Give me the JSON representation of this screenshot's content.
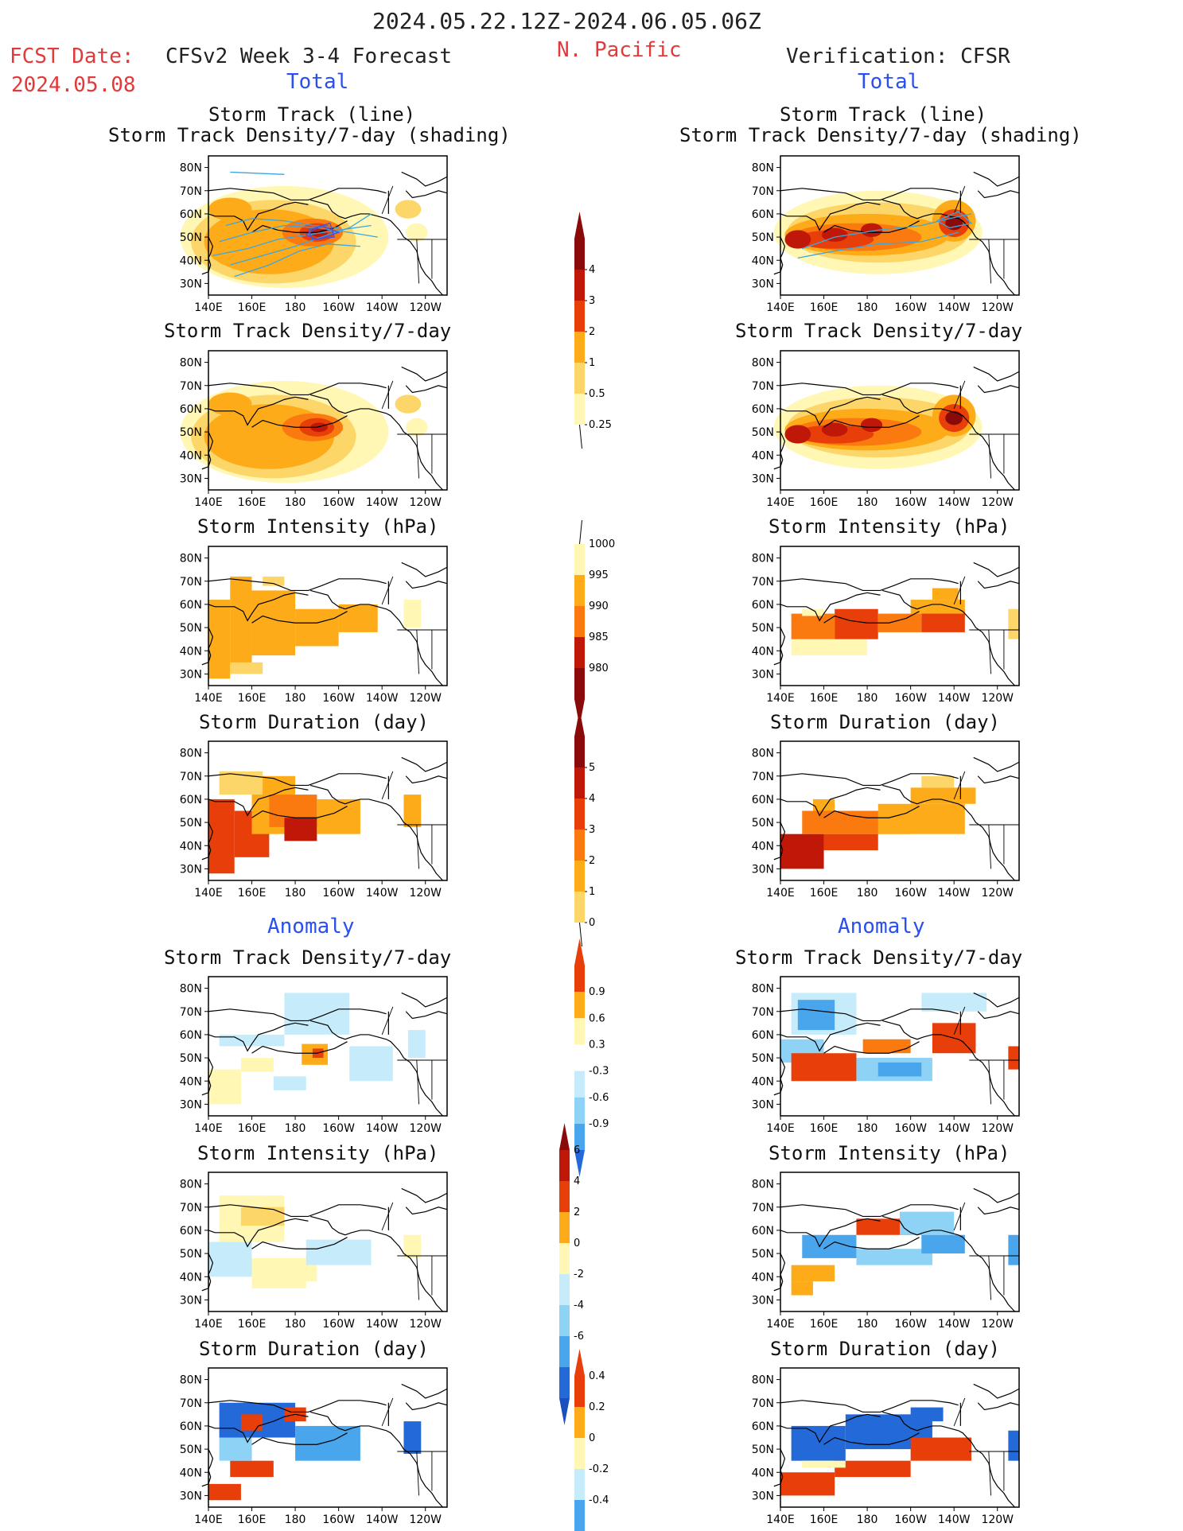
{
  "header": {
    "period": "2024.05.22.12Z-2024.06.05.06Z",
    "fcst_label": "FCST Date:",
    "fcst_date": "2024.05.08",
    "model_title": "CFSv2 Week 3-4 Forecast",
    "region": "N. Pacific",
    "verification": "Verification: CFSR"
  },
  "sections": {
    "total": "Total",
    "anomaly": "Anomaly"
  },
  "panel_titles": {
    "track_line": "Storm Track (line)",
    "track_shading": "Storm Track Density/7-day (shading)",
    "density": "Storm Track Density/7-day",
    "intensity": "Storm Intensity (hPa)",
    "duration": "Storm Duration (day)"
  },
  "axes": {
    "lat_labels": [
      "80N",
      "70N",
      "60N",
      "50N",
      "40N",
      "30N"
    ],
    "lon_labels": [
      "140E",
      "160E",
      "180",
      "160W",
      "140W",
      "120W"
    ]
  },
  "colorbars": {
    "density_total": [
      "4",
      "3",
      "2",
      "1",
      "0.5",
      "0.25"
    ],
    "intensity_total": [
      "1000",
      "995",
      "990",
      "985",
      "980"
    ],
    "duration_total": [
      "5",
      "4",
      "3",
      "2",
      "1",
      "0"
    ],
    "density_anom": [
      "0.9",
      "0.6",
      "0.3",
      "-0.3",
      "-0.6",
      "-0.9"
    ],
    "intensity_anom": [
      "6",
      "4",
      "2",
      "0",
      "-2",
      "-4",
      "-6"
    ],
    "duration_anom": [
      "0.4",
      "0.2",
      "0",
      "-0.2",
      "-0.4"
    ]
  },
  "colors": {
    "warm": [
      "#fff7b3",
      "#fdd66a",
      "#fdab18",
      "#fb7a10",
      "#e83e0a",
      "#c01808",
      "#8a0a0a"
    ],
    "cool": [
      "#c6ecfb",
      "#8ed3f6",
      "#4aa6ec",
      "#2469d8",
      "#1a4fc0"
    ],
    "track_line": "#39a7e3"
  },
  "map_data": {
    "forecast_density_center": {
      "lon": 190,
      "lat": 52,
      "value": 4
    },
    "cfsr_density_center": {
      "lon": 220,
      "lat": 55,
      "value": 4
    }
  }
}
